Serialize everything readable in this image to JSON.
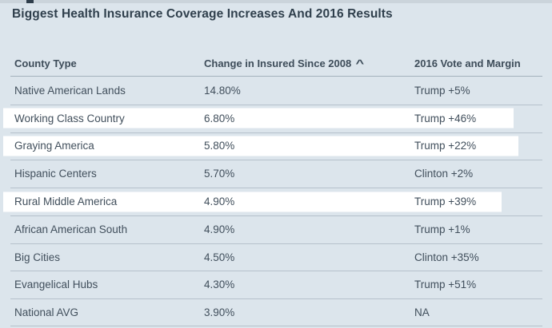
{
  "title": "Biggest Health Insurance Coverage Increases And 2016 Results",
  "colors": {
    "background": "#dce5ec",
    "row_highlight": "#ffffff",
    "text": "#3f4e5a",
    "divider": "#b6c1cb"
  },
  "table": {
    "columns": [
      {
        "label": "County Type"
      },
      {
        "label": "Change in Insured Since 2008"
      },
      {
        "label": "2016 Vote and Margin"
      }
    ],
    "sort_icon": "^",
    "sorted_column": "Change in Insured Since 2008",
    "rows": [
      {
        "county_type": "Native American Lands",
        "change": "14.80%",
        "vote": "Trump +5%",
        "highlighted": false
      },
      {
        "county_type": "Working Class Country",
        "change": "6.80%",
        "vote": "Trump +46%",
        "highlighted": true,
        "highlight_width": 638
      },
      {
        "county_type": "Graying America",
        "change": "5.80%",
        "vote": "Trump +22%",
        "highlighted": true,
        "highlight_width": 644
      },
      {
        "county_type": "Hispanic Centers",
        "change": "5.70%",
        "vote": "Clinton +2%",
        "highlighted": false
      },
      {
        "county_type": "Rural Middle America",
        "change": "4.90%",
        "vote": "Trump +39%",
        "highlighted": true,
        "highlight_width": 623
      },
      {
        "county_type": "African American South",
        "change": "4.90%",
        "vote": "Trump +1%",
        "highlighted": false
      },
      {
        "county_type": "Big Cities",
        "change": "4.50%",
        "vote": "Clinton +35%",
        "highlighted": false
      },
      {
        "county_type": "Evangelical Hubs",
        "change": "4.30%",
        "vote": "Trump +51%",
        "highlighted": false
      },
      {
        "county_type": "National AVG",
        "change": "3.90%",
        "vote": "NA",
        "highlighted": false
      }
    ]
  }
}
